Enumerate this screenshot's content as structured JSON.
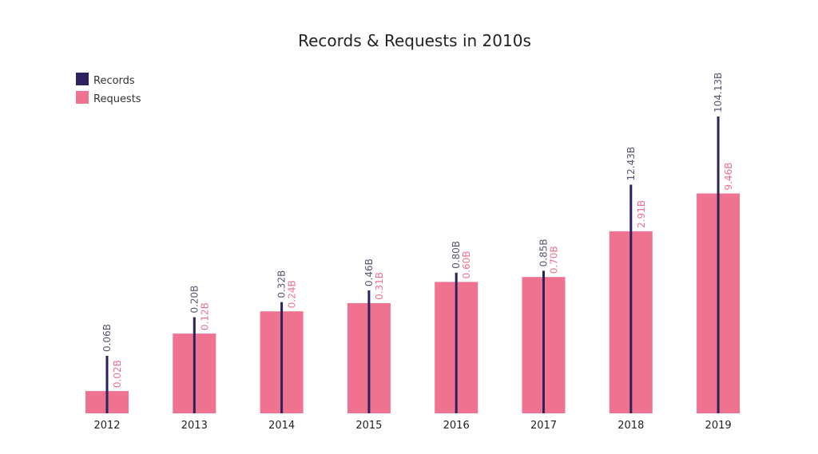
{
  "chart_data": {
    "type": "bar",
    "title": "Records & Requests in 2010s",
    "xlabel": "",
    "ylabel": "",
    "scale": "log",
    "grid": false,
    "legend_position": "top-left",
    "categories": [
      "2012",
      "2013",
      "2014",
      "2015",
      "2016",
      "2017",
      "2018",
      "2019"
    ],
    "series": [
      {
        "name": "Records",
        "mark": "thin-bar",
        "color": "#2e2160",
        "label_color": "#5b5475",
        "values": [
          0.06,
          0.2,
          0.32,
          0.46,
          0.8,
          0.85,
          12.43,
          104.13
        ],
        "labels": [
          "0.06B",
          "0.20B",
          "0.32B",
          "0.46B",
          "0.80B",
          "0.85B",
          "12.43B",
          "104.13B"
        ]
      },
      {
        "name": "Requests",
        "mark": "bar",
        "color": "#ef7391",
        "label_color": "#ef7391",
        "values": [
          0.02,
          0.12,
          0.24,
          0.31,
          0.6,
          0.7,
          2.91,
          9.46
        ],
        "labels": [
          "0.02B",
          "0.12B",
          "0.24B",
          "0.31B",
          "0.60B",
          "0.70B",
          "2.91B",
          "9.46B"
        ]
      }
    ]
  }
}
